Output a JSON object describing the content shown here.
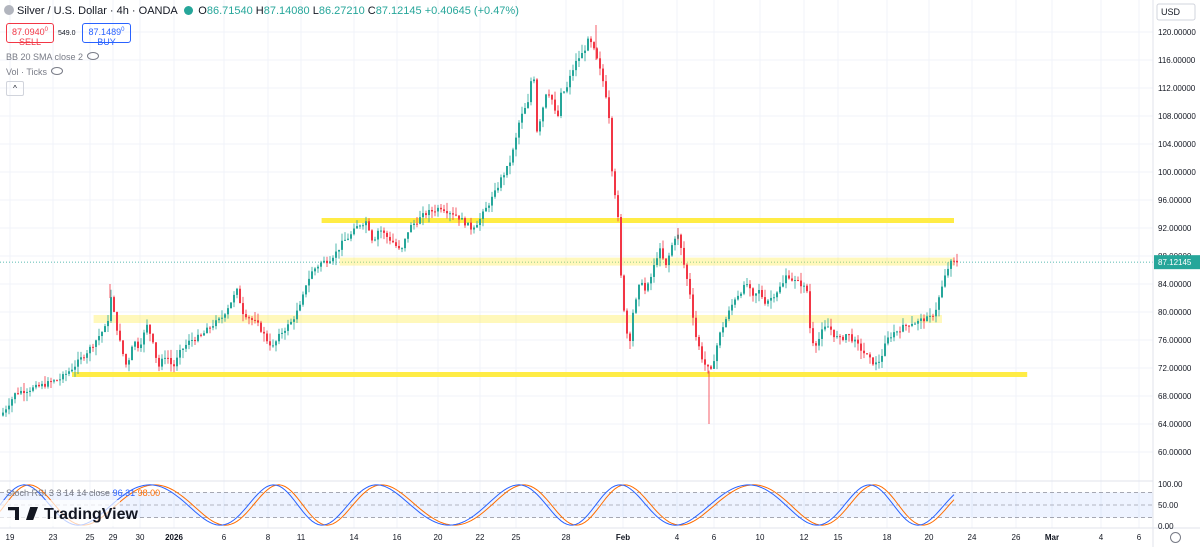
{
  "header": {
    "title": "Silver / U.S. Dollar · 4h · OANDA",
    "o_label": "O",
    "o": "86.71540",
    "h_label": "H",
    "h": "87.14080",
    "l_label": "L",
    "l": "86.27210",
    "c_label": "C",
    "c": "87.12145",
    "change": "+0.40645 (+0.47%)"
  },
  "trade": {
    "sell_price": "87.0940",
    "sell_sup": "0",
    "sell_label": "SELL",
    "spread": "549.0",
    "buy_price": "87.1489",
    "buy_sup": "0",
    "buy_label": "BUY"
  },
  "indicators": {
    "bb": "BB 20 SMA close 2",
    "vol": "Vol · Ticks"
  },
  "rsi_label": {
    "name": "Stoch RSI 3 3 14 14 close",
    "k": "96.31",
    "d": "98.00"
  },
  "brand": "TradingView",
  "currency": "USD",
  "colors": {
    "up": "#26a69a",
    "down": "#f23645",
    "zone": "#ffeb3b",
    "k_line": "#2962ff",
    "d_line": "#ff6d00"
  },
  "chart_data": {
    "type": "candlestick",
    "symbol": "Silver / U.S. Dollar",
    "interval": "4h",
    "ylim": [
      56,
      122
    ],
    "y_ticks": [
      "120.00000",
      "116.00000",
      "112.00000",
      "108.00000",
      "104.00000",
      "100.00000",
      "96.00000",
      "92.00000",
      "88.00000",
      "84.00000",
      "80.00000",
      "76.00000",
      "72.00000",
      "68.00000",
      "64.00000",
      "60.00000"
    ],
    "y_tick_values": [
      120,
      116,
      112,
      108,
      104,
      100,
      96,
      92,
      88,
      84,
      80,
      76,
      72,
      68,
      64,
      60
    ],
    "x_ticks": [
      "19",
      "23",
      "25",
      "29",
      "30",
      "2026",
      "6",
      "8",
      "11",
      "14",
      "16",
      "20",
      "22",
      "25",
      "28",
      "Feb",
      "4",
      "6",
      "10",
      "12",
      "15",
      "18",
      "20",
      "24",
      "26",
      "Mar",
      "4",
      "6"
    ],
    "last_price": 87.12,
    "price_path": [
      [
        0,
        65.2
      ],
      [
        15,
        68.5
      ],
      [
        35,
        69.2
      ],
      [
        60,
        70.5
      ],
      [
        75,
        72.5
      ],
      [
        90,
        75
      ],
      [
        100,
        77
      ],
      [
        106,
        78
      ],
      [
        110,
        82
      ],
      [
        114,
        79
      ],
      [
        120,
        75
      ],
      [
        126,
        72
      ],
      [
        132,
        76
      ],
      [
        138,
        75
      ],
      [
        146,
        78
      ],
      [
        152,
        76
      ],
      [
        157,
        72
      ],
      [
        165,
        74
      ],
      [
        172,
        72
      ],
      [
        180,
        74.5
      ],
      [
        190,
        76
      ],
      [
        200,
        76.5
      ],
      [
        210,
        78
      ],
      [
        220,
        79
      ],
      [
        228,
        81
      ],
      [
        236,
        83
      ],
      [
        242,
        80
      ],
      [
        250,
        79
      ],
      [
        258,
        78
      ],
      [
        266,
        76
      ],
      [
        272,
        75
      ],
      [
        280,
        77
      ],
      [
        290,
        78.5
      ],
      [
        300,
        81
      ],
      [
        305,
        84
      ],
      [
        312,
        86
      ],
      [
        320,
        87
      ],
      [
        328,
        87.5
      ],
      [
        335,
        88.5
      ],
      [
        342,
        90
      ],
      [
        350,
        91
      ],
      [
        358,
        92.5
      ],
      [
        366,
        93
      ],
      [
        372,
        90
      ],
      [
        378,
        92
      ],
      [
        384,
        91
      ],
      [
        392,
        90
      ],
      [
        400,
        88.5
      ],
      [
        408,
        92
      ],
      [
        416,
        93
      ],
      [
        424,
        94
      ],
      [
        432,
        94.5
      ],
      [
        440,
        95
      ],
      [
        446,
        94.5
      ],
      [
        454,
        94
      ],
      [
        462,
        93
      ],
      [
        470,
        92
      ],
      [
        478,
        93
      ],
      [
        486,
        95
      ],
      [
        494,
        97
      ],
      [
        500,
        99
      ],
      [
        508,
        101
      ],
      [
        514,
        104
      ],
      [
        518,
        107
      ],
      [
        522,
        108.5
      ],
      [
        528,
        110
      ],
      [
        532,
        116
      ],
      [
        536,
        106
      ],
      [
        540,
        108
      ],
      [
        546,
        112
      ],
      [
        552,
        110
      ],
      [
        556,
        107
      ],
      [
        560,
        111
      ],
      [
        566,
        112
      ],
      [
        570,
        114
      ],
      [
        576,
        116
      ],
      [
        582,
        117
      ],
      [
        588,
        119
      ],
      [
        594,
        117
      ],
      [
        600,
        114
      ],
      [
        604,
        112
      ],
      [
        608,
        108
      ],
      [
        612,
        98
      ],
      [
        616,
        96
      ],
      [
        620,
        85
      ],
      [
        624,
        79
      ],
      [
        628,
        75
      ],
      [
        632,
        80
      ],
      [
        636,
        82
      ],
      [
        640,
        85
      ],
      [
        644,
        83
      ],
      [
        648,
        84
      ],
      [
        652,
        86
      ],
      [
        656,
        88
      ],
      [
        660,
        89
      ],
      [
        664,
        86
      ],
      [
        668,
        88
      ],
      [
        672,
        90
      ],
      [
        676,
        91.5
      ],
      [
        680,
        89
      ],
      [
        684,
        86
      ],
      [
        690,
        82
      ],
      [
        694,
        77
      ],
      [
        698,
        75
      ],
      [
        702,
        73
      ],
      [
        706,
        72
      ],
      [
        710,
        71.5
      ],
      [
        714,
        74
      ],
      [
        718,
        76.5
      ],
      [
        722,
        78
      ],
      [
        728,
        80
      ],
      [
        734,
        82
      ],
      [
        740,
        83
      ],
      [
        746,
        84
      ],
      [
        752,
        82
      ],
      [
        758,
        83
      ],
      [
        764,
        81.5
      ],
      [
        770,
        82
      ],
      [
        776,
        83
      ],
      [
        782,
        84
      ],
      [
        786,
        85.5
      ],
      [
        792,
        84.5
      ],
      [
        800,
        84
      ],
      [
        806,
        83
      ],
      [
        810,
        76
      ],
      [
        816,
        75.5
      ],
      [
        822,
        77.5
      ],
      [
        828,
        78
      ],
      [
        834,
        76.5
      ],
      [
        840,
        76
      ],
      [
        846,
        77
      ],
      [
        852,
        76
      ],
      [
        858,
        75
      ],
      [
        864,
        74
      ],
      [
        870,
        73
      ],
      [
        876,
        72.5
      ],
      [
        880,
        73.5
      ],
      [
        886,
        76
      ],
      [
        892,
        77
      ],
      [
        898,
        77.5
      ],
      [
        904,
        78
      ],
      [
        910,
        78.5
      ],
      [
        916,
        78.5
      ],
      [
        922,
        79
      ],
      [
        928,
        79
      ],
      [
        934,
        80
      ],
      [
        938,
        82
      ],
      [
        942,
        84
      ],
      [
        946,
        86
      ],
      [
        950,
        87
      ],
      [
        956,
        87.2
      ]
    ],
    "zones": [
      {
        "label": "resistance-top",
        "level": 93.0,
        "x_start_frac": 0.268,
        "x_end_frac": 0.795
      },
      {
        "label": "current-band",
        "level": 87.2,
        "x_start_frac": 0.283,
        "x_end_frac": 0.795
      },
      {
        "label": "mid-band",
        "level": 79.0,
        "x_start_frac": 0.078,
        "x_end_frac": 0.785
      },
      {
        "label": "support",
        "level": 71.0,
        "x_start_frac": 0.06,
        "x_end_frac": 0.856
      }
    ],
    "stoch_rsi": {
      "k_name": "K",
      "d_name": "D",
      "levels": [
        80,
        50,
        20
      ],
      "y_ticks": [
        "100.00",
        "50.00",
        "0.00"
      ],
      "k_value": 96.31,
      "d_value": 98.0
    }
  }
}
